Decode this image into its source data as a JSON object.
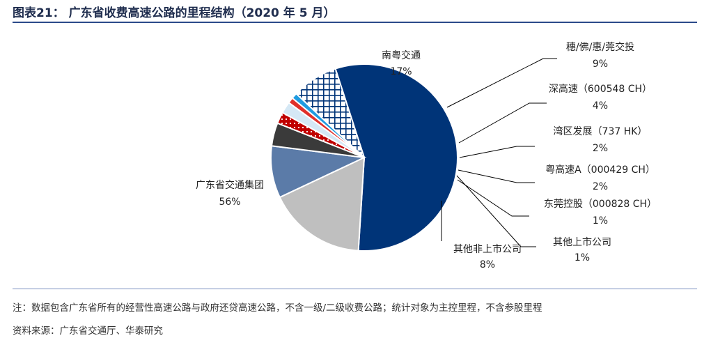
{
  "header": {
    "title": "图表21：  广东省收费高速公路的里程结构（2020 年 5 月）"
  },
  "chart_data": {
    "type": "pie",
    "title": "图表21：  广东省收费高速公路的里程结构（2020 年 5 月）",
    "slices": [
      {
        "name": "广东省交通集团",
        "value": 56,
        "label": "56%",
        "color": "#003478"
      },
      {
        "name": "南粤交通",
        "value": 17,
        "label": "17%",
        "color": "#bfbfbf"
      },
      {
        "name": "穗/佛/惠/莞交投",
        "value": 9,
        "label": "9%",
        "color": "#5b7ba8"
      },
      {
        "name": "深高速（600548 CH）",
        "value": 4,
        "label": "4%",
        "color": "#3a3a3a"
      },
      {
        "name": "湾区发展（737 HK）",
        "value": 2,
        "label": "2%",
        "color": "#c00000"
      },
      {
        "name": "粤高速A（000429 CH）",
        "value": 2,
        "label": "2%",
        "color": "#d5e8f5"
      },
      {
        "name": "其他上市公司",
        "value": 1,
        "label": "1%",
        "color": "#e0302a"
      },
      {
        "name": "东莞控股（000828 CH）",
        "value": 1,
        "label": "1%",
        "color": "#1f9be0"
      },
      {
        "name": "其他非上市公司",
        "value": 8,
        "label": "8%",
        "color": "#003478"
      }
    ]
  },
  "footer": {
    "note": "注：数据包含广东省所有的经营性高速公路与政府还贷高速公路，不含一级/二级收费公路；统计对象为主控里程，不含参股里程",
    "source": "资料来源：广东省交通厅、华泰研究"
  }
}
